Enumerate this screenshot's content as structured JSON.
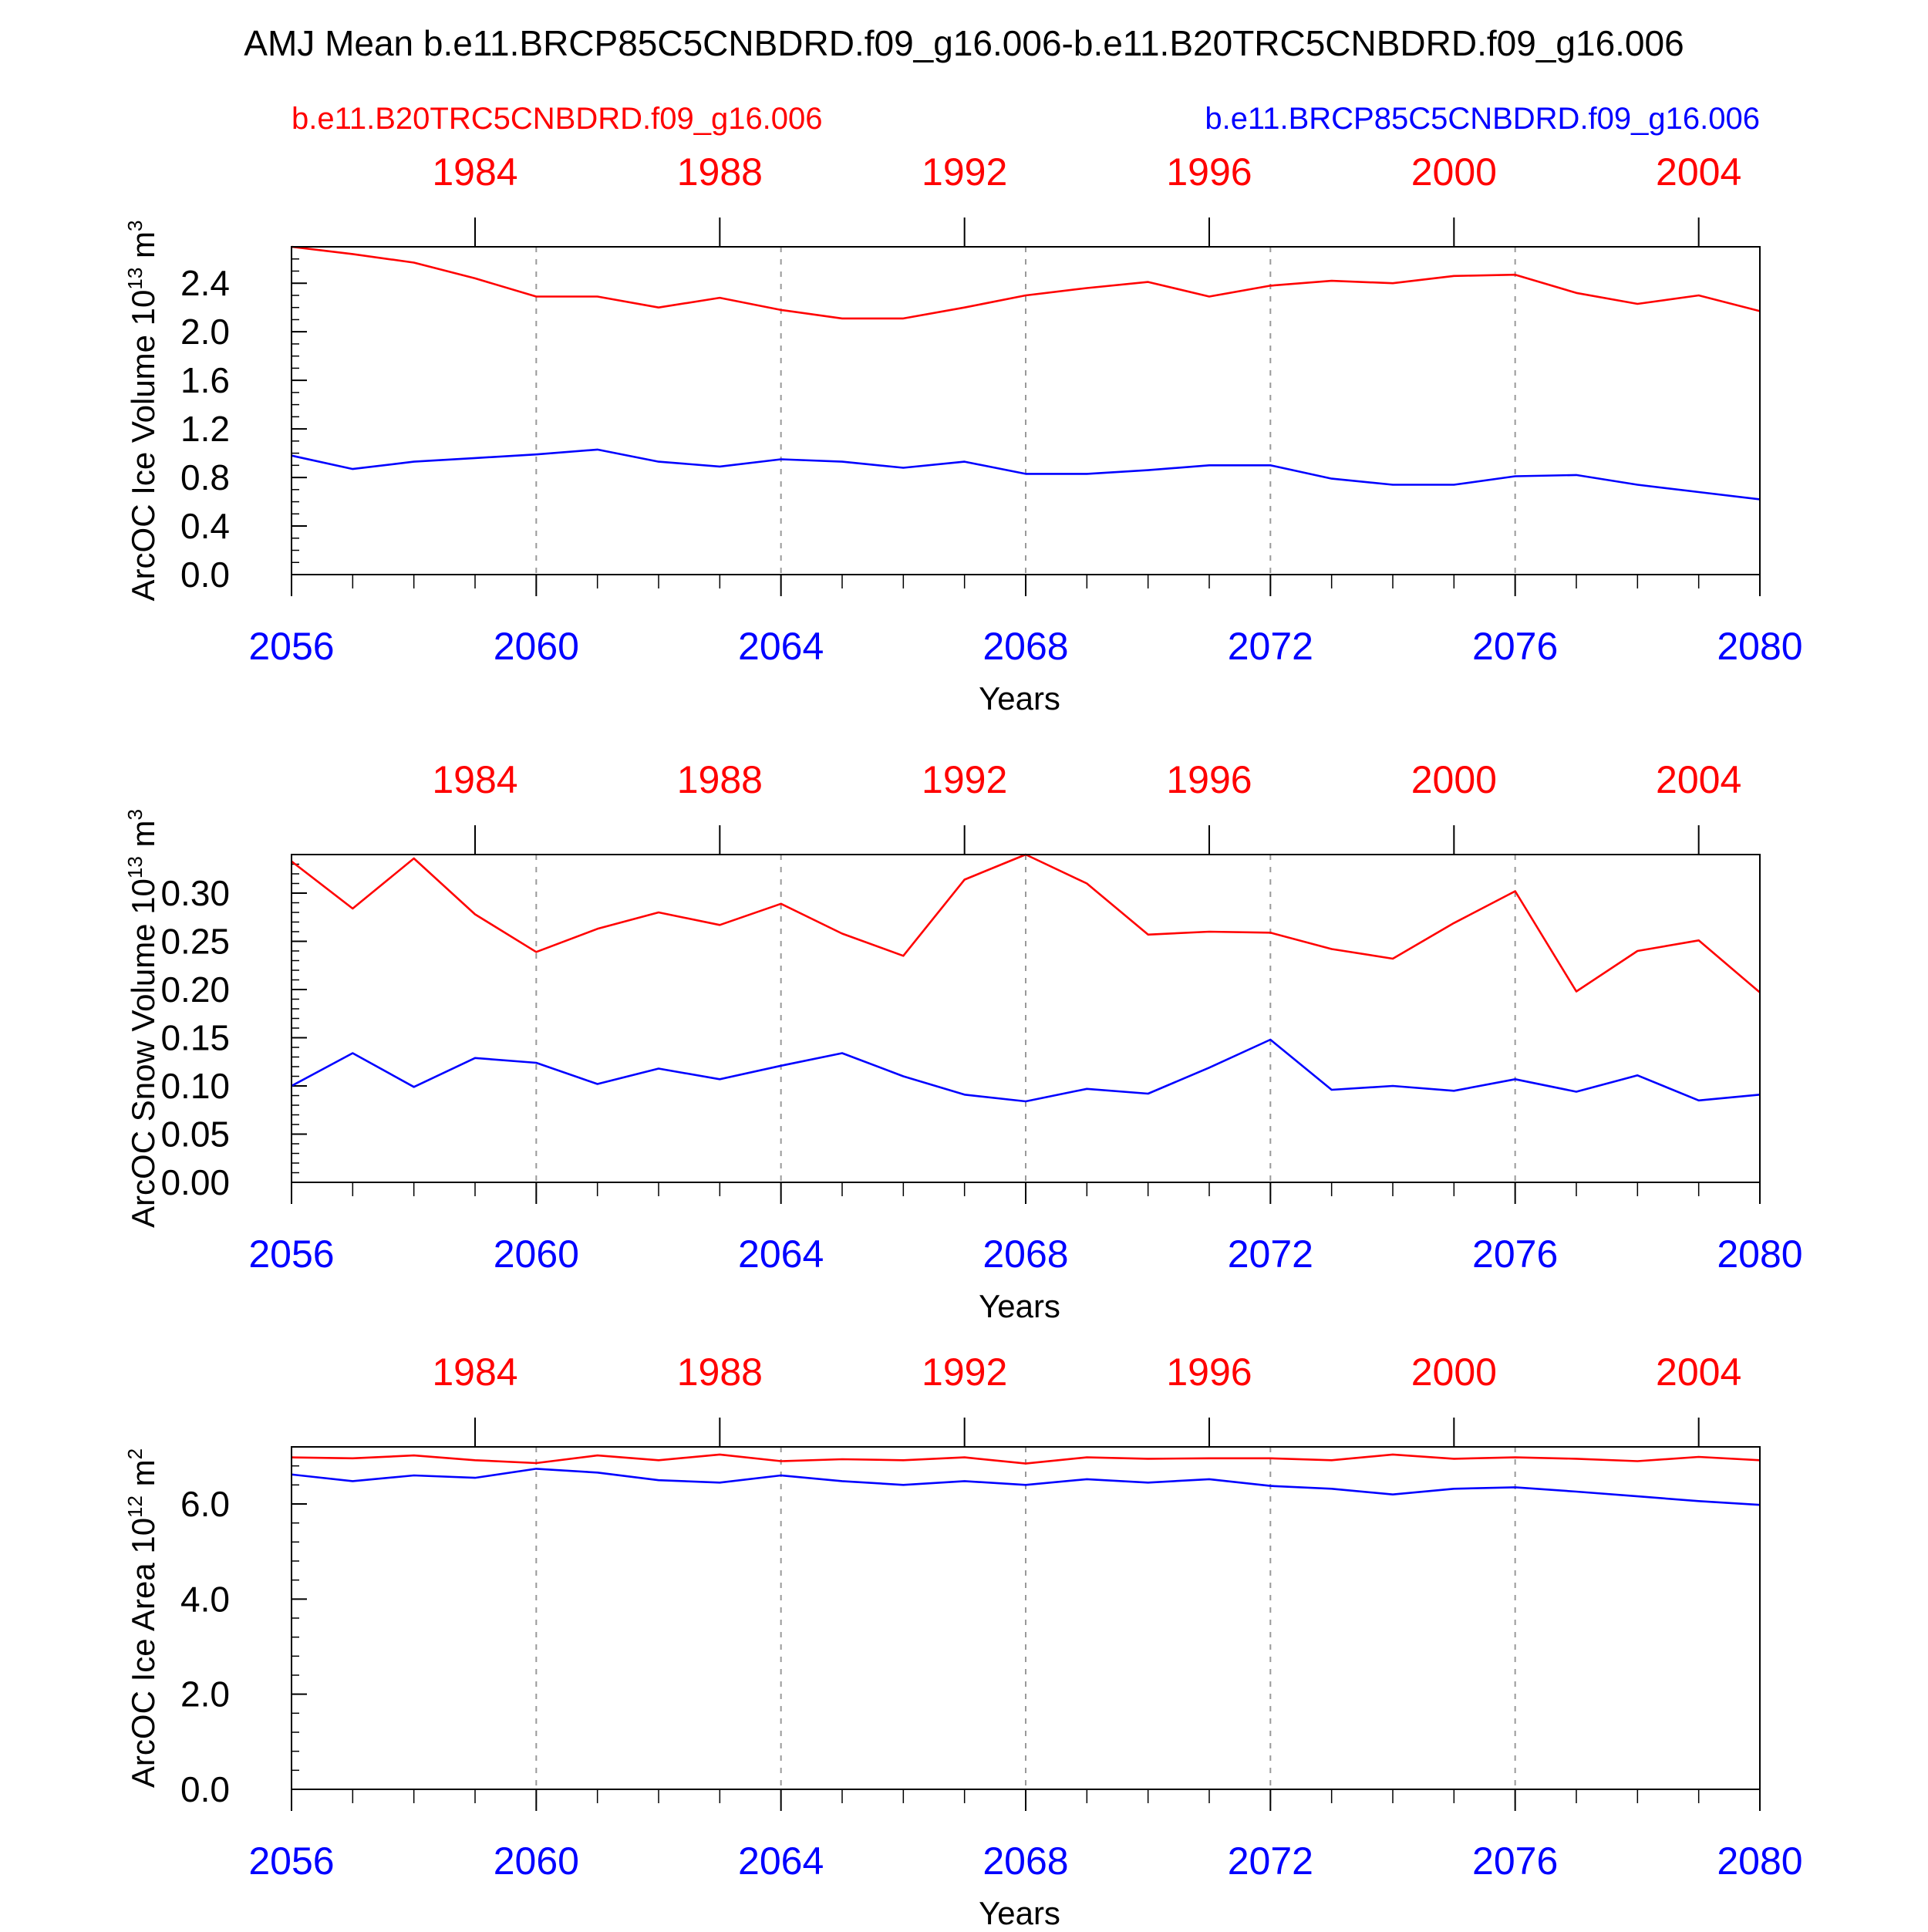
{
  "title": "AMJ Mean b.e11.BRCP85C5CNBDRD.f09_g16.006-b.e11.B20TRC5CNBDRD.f09_g16.006",
  "legend": {
    "left": "b.e11.B20TRC5CNBDRD.f09_g16.006",
    "right": "b.e11.BRCP85C5CNBDRD.f09_g16.006"
  },
  "colors": {
    "red": "#ff0000",
    "blue": "#0000ff",
    "axis": "#000000",
    "grid": "#999999"
  },
  "chart_data": [
    {
      "type": "line",
      "ylabel_main": "ArcOC Ice Volume 10",
      "ylabel_exp": "13",
      "ylabel_unit": " m",
      "ylabel_unit_exp": "3",
      "xlabel": "Years",
      "ylim": [
        0.0,
        2.7
      ],
      "yticks": [
        0.0,
        0.4,
        0.8,
        1.2,
        1.6,
        2.0,
        2.4
      ],
      "ytick_labels": [
        "0.0",
        "0.4",
        "0.8",
        "1.2",
        "1.6",
        "2.0",
        "2.4"
      ],
      "yminor_step": 0.1,
      "xlim": [
        2056,
        2080
      ],
      "x": [
        2056,
        2057,
        2058,
        2059,
        2060,
        2061,
        2062,
        2063,
        2064,
        2065,
        2066,
        2067,
        2068,
        2069,
        2070,
        2071,
        2072,
        2073,
        2074,
        2075,
        2076,
        2077,
        2078,
        2079,
        2080
      ],
      "bottom_ticks": [
        2056,
        2060,
        2064,
        2068,
        2072,
        2076,
        2080
      ],
      "bottom_tick_labels": [
        "2056",
        "2060",
        "2064",
        "2068",
        "2072",
        "2076",
        "2080"
      ],
      "top_ticks": [
        2059,
        2063,
        2067,
        2071,
        2075,
        2079
      ],
      "top_tick_labels": [
        "1984",
        "1988",
        "1992",
        "1996",
        "2000",
        "2004"
      ],
      "grid_x": [
        2060,
        2064,
        2068,
        2072,
        2076
      ],
      "series": [
        {
          "name": "b.e11.B20TRC5CNBDRD.f09_g16.006",
          "color": "red",
          "values": [
            2.7,
            2.64,
            2.57,
            2.44,
            2.29,
            2.29,
            2.2,
            2.28,
            2.18,
            2.11,
            2.11,
            2.2,
            2.3,
            2.36,
            2.41,
            2.29,
            2.38,
            2.42,
            2.4,
            2.46,
            2.47,
            2.32,
            2.23,
            2.3,
            2.17
          ]
        },
        {
          "name": "b.e11.BRCP85C5CNBDRD.f09_g16.006",
          "color": "blue",
          "values": [
            0.98,
            0.87,
            0.93,
            0.96,
            0.99,
            1.03,
            0.93,
            0.89,
            0.95,
            0.93,
            0.88,
            0.93,
            0.83,
            0.83,
            0.86,
            0.9,
            0.9,
            0.79,
            0.74,
            0.74,
            0.81,
            0.82,
            0.74,
            0.68,
            0.62
          ]
        }
      ]
    },
    {
      "type": "line",
      "ylabel_main": "ArcOC Snow Volume 10",
      "ylabel_exp": "13",
      "ylabel_unit": " m",
      "ylabel_unit_exp": "3",
      "xlabel": "Years",
      "ylim": [
        0.0,
        0.34
      ],
      "yticks": [
        0.0,
        0.05,
        0.1,
        0.15,
        0.2,
        0.25,
        0.3
      ],
      "ytick_labels": [
        "0.00",
        "0.05",
        "0.10",
        "0.15",
        "0.20",
        "0.25",
        "0.30"
      ],
      "yminor_step": 0.01,
      "xlim": [
        2056,
        2080
      ],
      "x": [
        2056,
        2057,
        2058,
        2059,
        2060,
        2061,
        2062,
        2063,
        2064,
        2065,
        2066,
        2067,
        2068,
        2069,
        2070,
        2071,
        2072,
        2073,
        2074,
        2075,
        2076,
        2077,
        2078,
        2079,
        2080
      ],
      "bottom_ticks": [
        2056,
        2060,
        2064,
        2068,
        2072,
        2076,
        2080
      ],
      "bottom_tick_labels": [
        "2056",
        "2060",
        "2064",
        "2068",
        "2072",
        "2076",
        "2080"
      ],
      "top_ticks": [
        2059,
        2063,
        2067,
        2071,
        2075,
        2079
      ],
      "top_tick_labels": [
        "1984",
        "1988",
        "1992",
        "1996",
        "2000",
        "2004"
      ],
      "grid_x": [
        2060,
        2064,
        2068,
        2072,
        2076
      ],
      "series": [
        {
          "name": "b.e11.B20TRC5CNBDRD.f09_g16.006",
          "color": "red",
          "values": [
            0.333,
            0.284,
            0.336,
            0.278,
            0.239,
            0.263,
            0.28,
            0.267,
            0.289,
            0.258,
            0.235,
            0.314,
            0.34,
            0.31,
            0.257,
            0.26,
            0.259,
            0.242,
            0.232,
            0.269,
            0.302,
            0.198,
            0.24,
            0.251,
            0.197
          ]
        },
        {
          "name": "b.e11.BRCP85C5CNBDRD.f09_g16.006",
          "color": "blue",
          "values": [
            0.1,
            0.134,
            0.099,
            0.129,
            0.124,
            0.102,
            0.118,
            0.107,
            0.121,
            0.134,
            0.11,
            0.091,
            0.084,
            0.097,
            0.092,
            0.119,
            0.148,
            0.096,
            0.1,
            0.095,
            0.107,
            0.094,
            0.111,
            0.085,
            0.091
          ]
        }
      ]
    },
    {
      "type": "line",
      "ylabel_main": "ArcOC Ice Area 10",
      "ylabel_exp": "12",
      "ylabel_unit": " m",
      "ylabel_unit_exp": "2",
      "xlabel": "Years",
      "ylim": [
        0.0,
        7.2
      ],
      "yticks": [
        0.0,
        2.0,
        4.0,
        6.0
      ],
      "ytick_labels": [
        "0.0",
        "2.0",
        "4.0",
        "6.0"
      ],
      "yminor_step": 0.4,
      "xlim": [
        2056,
        2080
      ],
      "x": [
        2056,
        2057,
        2058,
        2059,
        2060,
        2061,
        2062,
        2063,
        2064,
        2065,
        2066,
        2067,
        2068,
        2069,
        2070,
        2071,
        2072,
        2073,
        2074,
        2075,
        2076,
        2077,
        2078,
        2079,
        2080
      ],
      "bottom_ticks": [
        2056,
        2060,
        2064,
        2068,
        2072,
        2076,
        2080
      ],
      "bottom_tick_labels": [
        "2056",
        "2060",
        "2064",
        "2068",
        "2072",
        "2076",
        "2080"
      ],
      "top_ticks": [
        2059,
        2063,
        2067,
        2071,
        2075,
        2079
      ],
      "top_tick_labels": [
        "1984",
        "1988",
        "1992",
        "1996",
        "2000",
        "2004"
      ],
      "grid_x": [
        2060,
        2064,
        2068,
        2072,
        2076
      ],
      "series": [
        {
          "name": "b.e11.B20TRC5CNBDRD.f09_g16.006",
          "color": "red",
          "values": [
            6.98,
            6.96,
            7.02,
            6.92,
            6.86,
            7.02,
            6.92,
            7.04,
            6.9,
            6.94,
            6.92,
            6.98,
            6.85,
            6.98,
            6.95,
            6.96,
            6.96,
            6.92,
            7.04,
            6.95,
            6.98,
            6.95,
            6.9,
            6.99,
            6.92
          ]
        },
        {
          "name": "b.e11.BRCP85C5CNBDRD.f09_g16.006",
          "color": "blue",
          "values": [
            6.62,
            6.48,
            6.6,
            6.55,
            6.74,
            6.66,
            6.5,
            6.45,
            6.6,
            6.48,
            6.4,
            6.48,
            6.4,
            6.52,
            6.45,
            6.52,
            6.38,
            6.32,
            6.2,
            6.32,
            6.35,
            6.26,
            6.16,
            6.06,
            5.98
          ]
        }
      ]
    }
  ]
}
